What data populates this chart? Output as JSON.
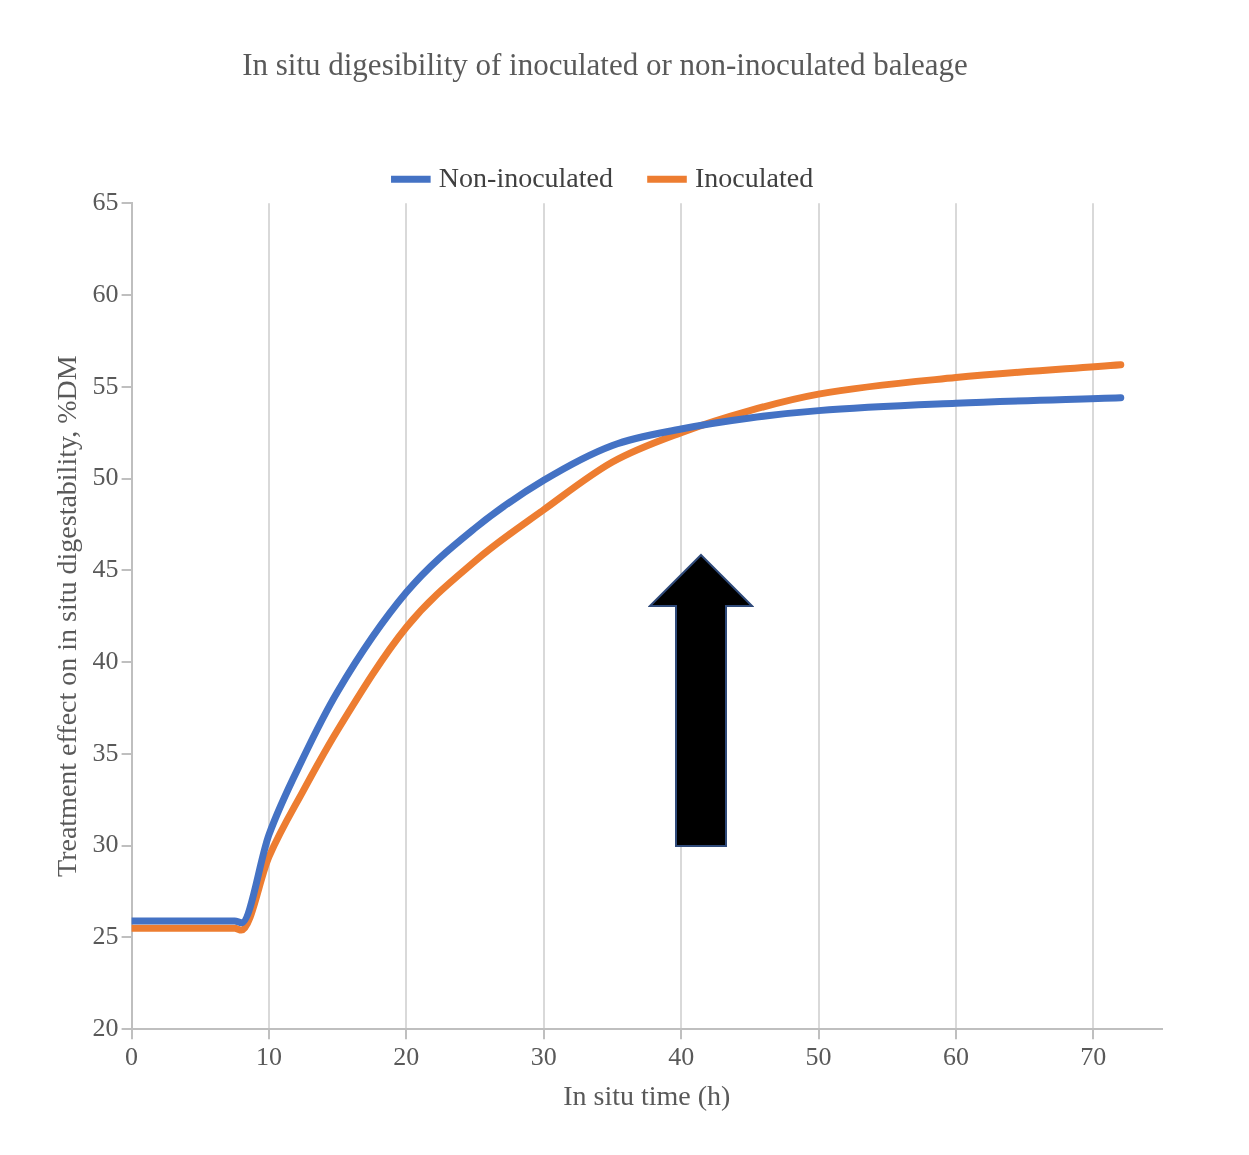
{
  "chart_data": {
    "type": "line",
    "title": "In situ digesibility of inoculated or non-inoculated baleage",
    "xlabel": "In situ time (h)",
    "ylabel": "Treatment effect on in situ digestability, %DM",
    "xlim": [
      0,
      75
    ],
    "xticks": [
      0,
      10,
      20,
      30,
      40,
      50,
      60,
      70
    ],
    "ylim": [
      20,
      65
    ],
    "yticks": [
      20,
      25,
      30,
      35,
      40,
      45,
      50,
      55,
      60,
      65
    ],
    "grid": "x",
    "legend": "top",
    "marker": "none",
    "line_style": "solid",
    "series": [
      {
        "name": "Non-inoculated",
        "color": "#4472c4",
        "x": [
          0,
          7.5,
          8,
          10,
          12.5,
          15,
          20,
          25,
          30,
          35,
          40,
          45,
          50,
          60,
          72
        ],
        "values": [
          25.9,
          25.9,
          25.8,
          30.6,
          34.8,
          38.4,
          43.8,
          47.3,
          49.9,
          51.8,
          52.7,
          53.3,
          53.7,
          54.1,
          54.4
        ]
      },
      {
        "name": "Inoculated",
        "color": "#ed7d31",
        "x": [
          0,
          7.5,
          8,
          10,
          12.5,
          15,
          20,
          25,
          30,
          35,
          40,
          45,
          50,
          60,
          72
        ],
        "values": [
          25.5,
          25.5,
          25.4,
          29.4,
          33.0,
          36.3,
          41.9,
          45.5,
          48.3,
          50.9,
          52.5,
          53.7,
          54.6,
          55.5,
          56.2
        ]
      }
    ]
  }
}
